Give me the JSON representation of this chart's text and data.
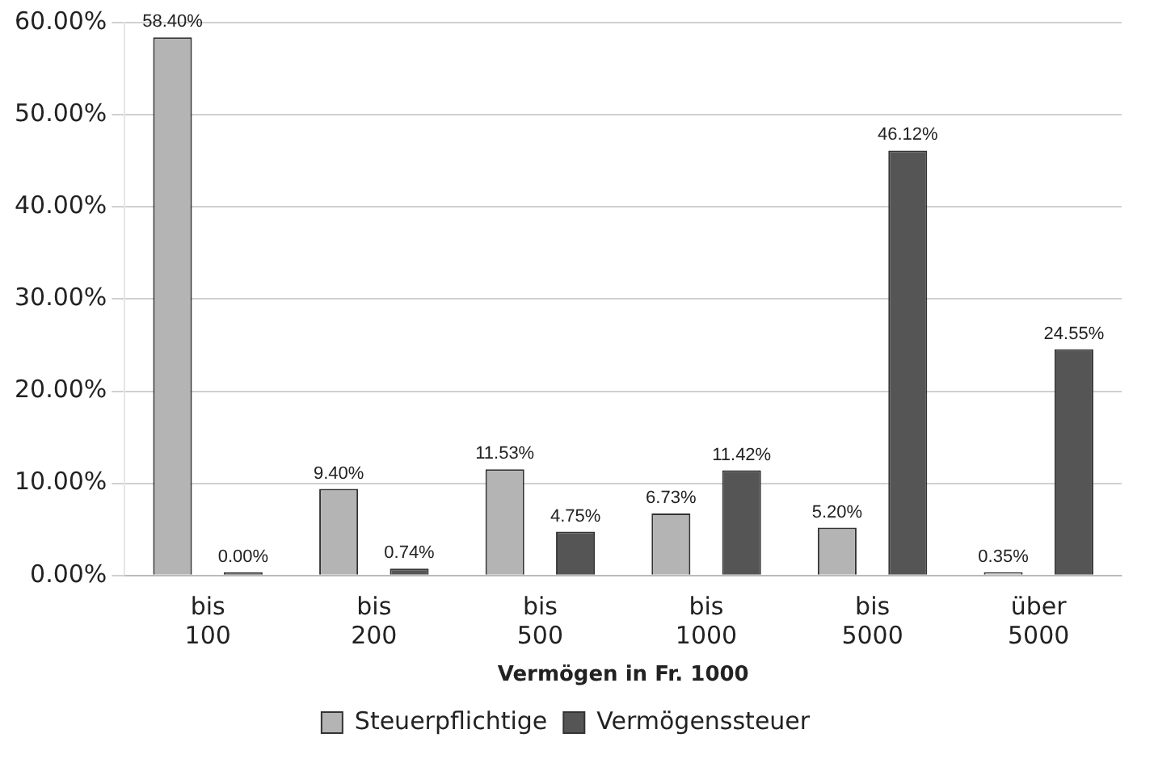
{
  "chart_data": {
    "type": "bar",
    "xlabel": "Vermögen in Fr. 1000",
    "categories": [
      "bis 100",
      "bis 200",
      "bis 500",
      "bis 1000",
      "bis 5000",
      "über 5000"
    ],
    "series": [
      {
        "name": "Steuerpflichtige",
        "color": "#b4b4b4",
        "values": [
          58.4,
          9.4,
          11.53,
          6.73,
          5.2,
          0.35
        ],
        "value_labels": [
          "58.40%",
          "9.40%",
          "11.53%",
          "6.73%",
          "5.20%",
          "0.35%"
        ]
      },
      {
        "name": "Vermögenssteuer",
        "color": "#555555",
        "values": [
          0,
          0.74,
          4.75,
          11.42,
          46.12,
          24.55
        ],
        "value_labels": [
          "0.00%",
          "0.74%",
          "4.75%",
          "11.42%",
          "46.12%",
          "24.55%"
        ]
      }
    ],
    "ylim": [
      0,
      60
    ],
    "yticks": [
      {
        "value": 0,
        "label": "0.00%"
      },
      {
        "value": 10,
        "label": "10.00%"
      },
      {
        "value": 20,
        "label": "20.00%"
      },
      {
        "value": 30,
        "label": "30.00%"
      },
      {
        "value": 40,
        "label": "40.00%"
      },
      {
        "value": 50,
        "label": "50.00%"
      },
      {
        "value": 60,
        "label": "60.00%"
      }
    ],
    "grid": "y",
    "legend": "bottom"
  }
}
